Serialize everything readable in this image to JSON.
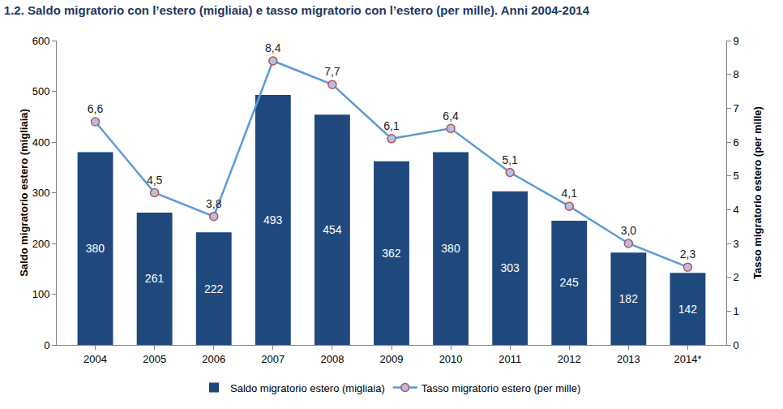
{
  "chart_data": {
    "type": "bar",
    "title": "1.2. Saldo migratorio con l’estero (migliaia) e tasso migratorio con l’estero (per mille). Anni 2004-2014",
    "categories": [
      "2004",
      "2005",
      "2006",
      "2007",
      "2008",
      "2009",
      "2010",
      "2011",
      "2012",
      "2013",
      "2014*"
    ],
    "series": [
      {
        "name": "Saldo migratorio estero (migliaia)",
        "type": "bar",
        "color": "#1f497d",
        "values": [
          380,
          261,
          222,
          493,
          454,
          362,
          380,
          303,
          245,
          182,
          142
        ]
      },
      {
        "name": "Tasso migratorio estero (per mille)",
        "type": "line",
        "axis": "y2",
        "color": "#5b9bd5",
        "marker": "circle",
        "values": [
          6.6,
          4.5,
          3.8,
          8.4,
          7.7,
          6.1,
          6.4,
          5.1,
          4.1,
          3.0,
          2.3
        ],
        "value_labels": [
          "6,6",
          "4,5",
          "3,8",
          "8,4",
          "7,7",
          "6,1",
          "6,4",
          "5,1",
          "4,1",
          "3,0",
          "2,3"
        ]
      }
    ],
    "y_label": "Saldo migratorio estero (migliaia)",
    "y2_label": "Tasso migratorio estero (per mille)",
    "ylim": [
      0,
      600
    ],
    "yticks": [
      0,
      100,
      200,
      300,
      400,
      500,
      600
    ],
    "y2lim": [
      0,
      9
    ],
    "y2ticks": [
      0,
      1,
      2,
      3,
      4,
      5,
      6,
      7,
      8,
      9
    ],
    "grid": false,
    "legend": "bottom",
    "data_labels": true
  }
}
